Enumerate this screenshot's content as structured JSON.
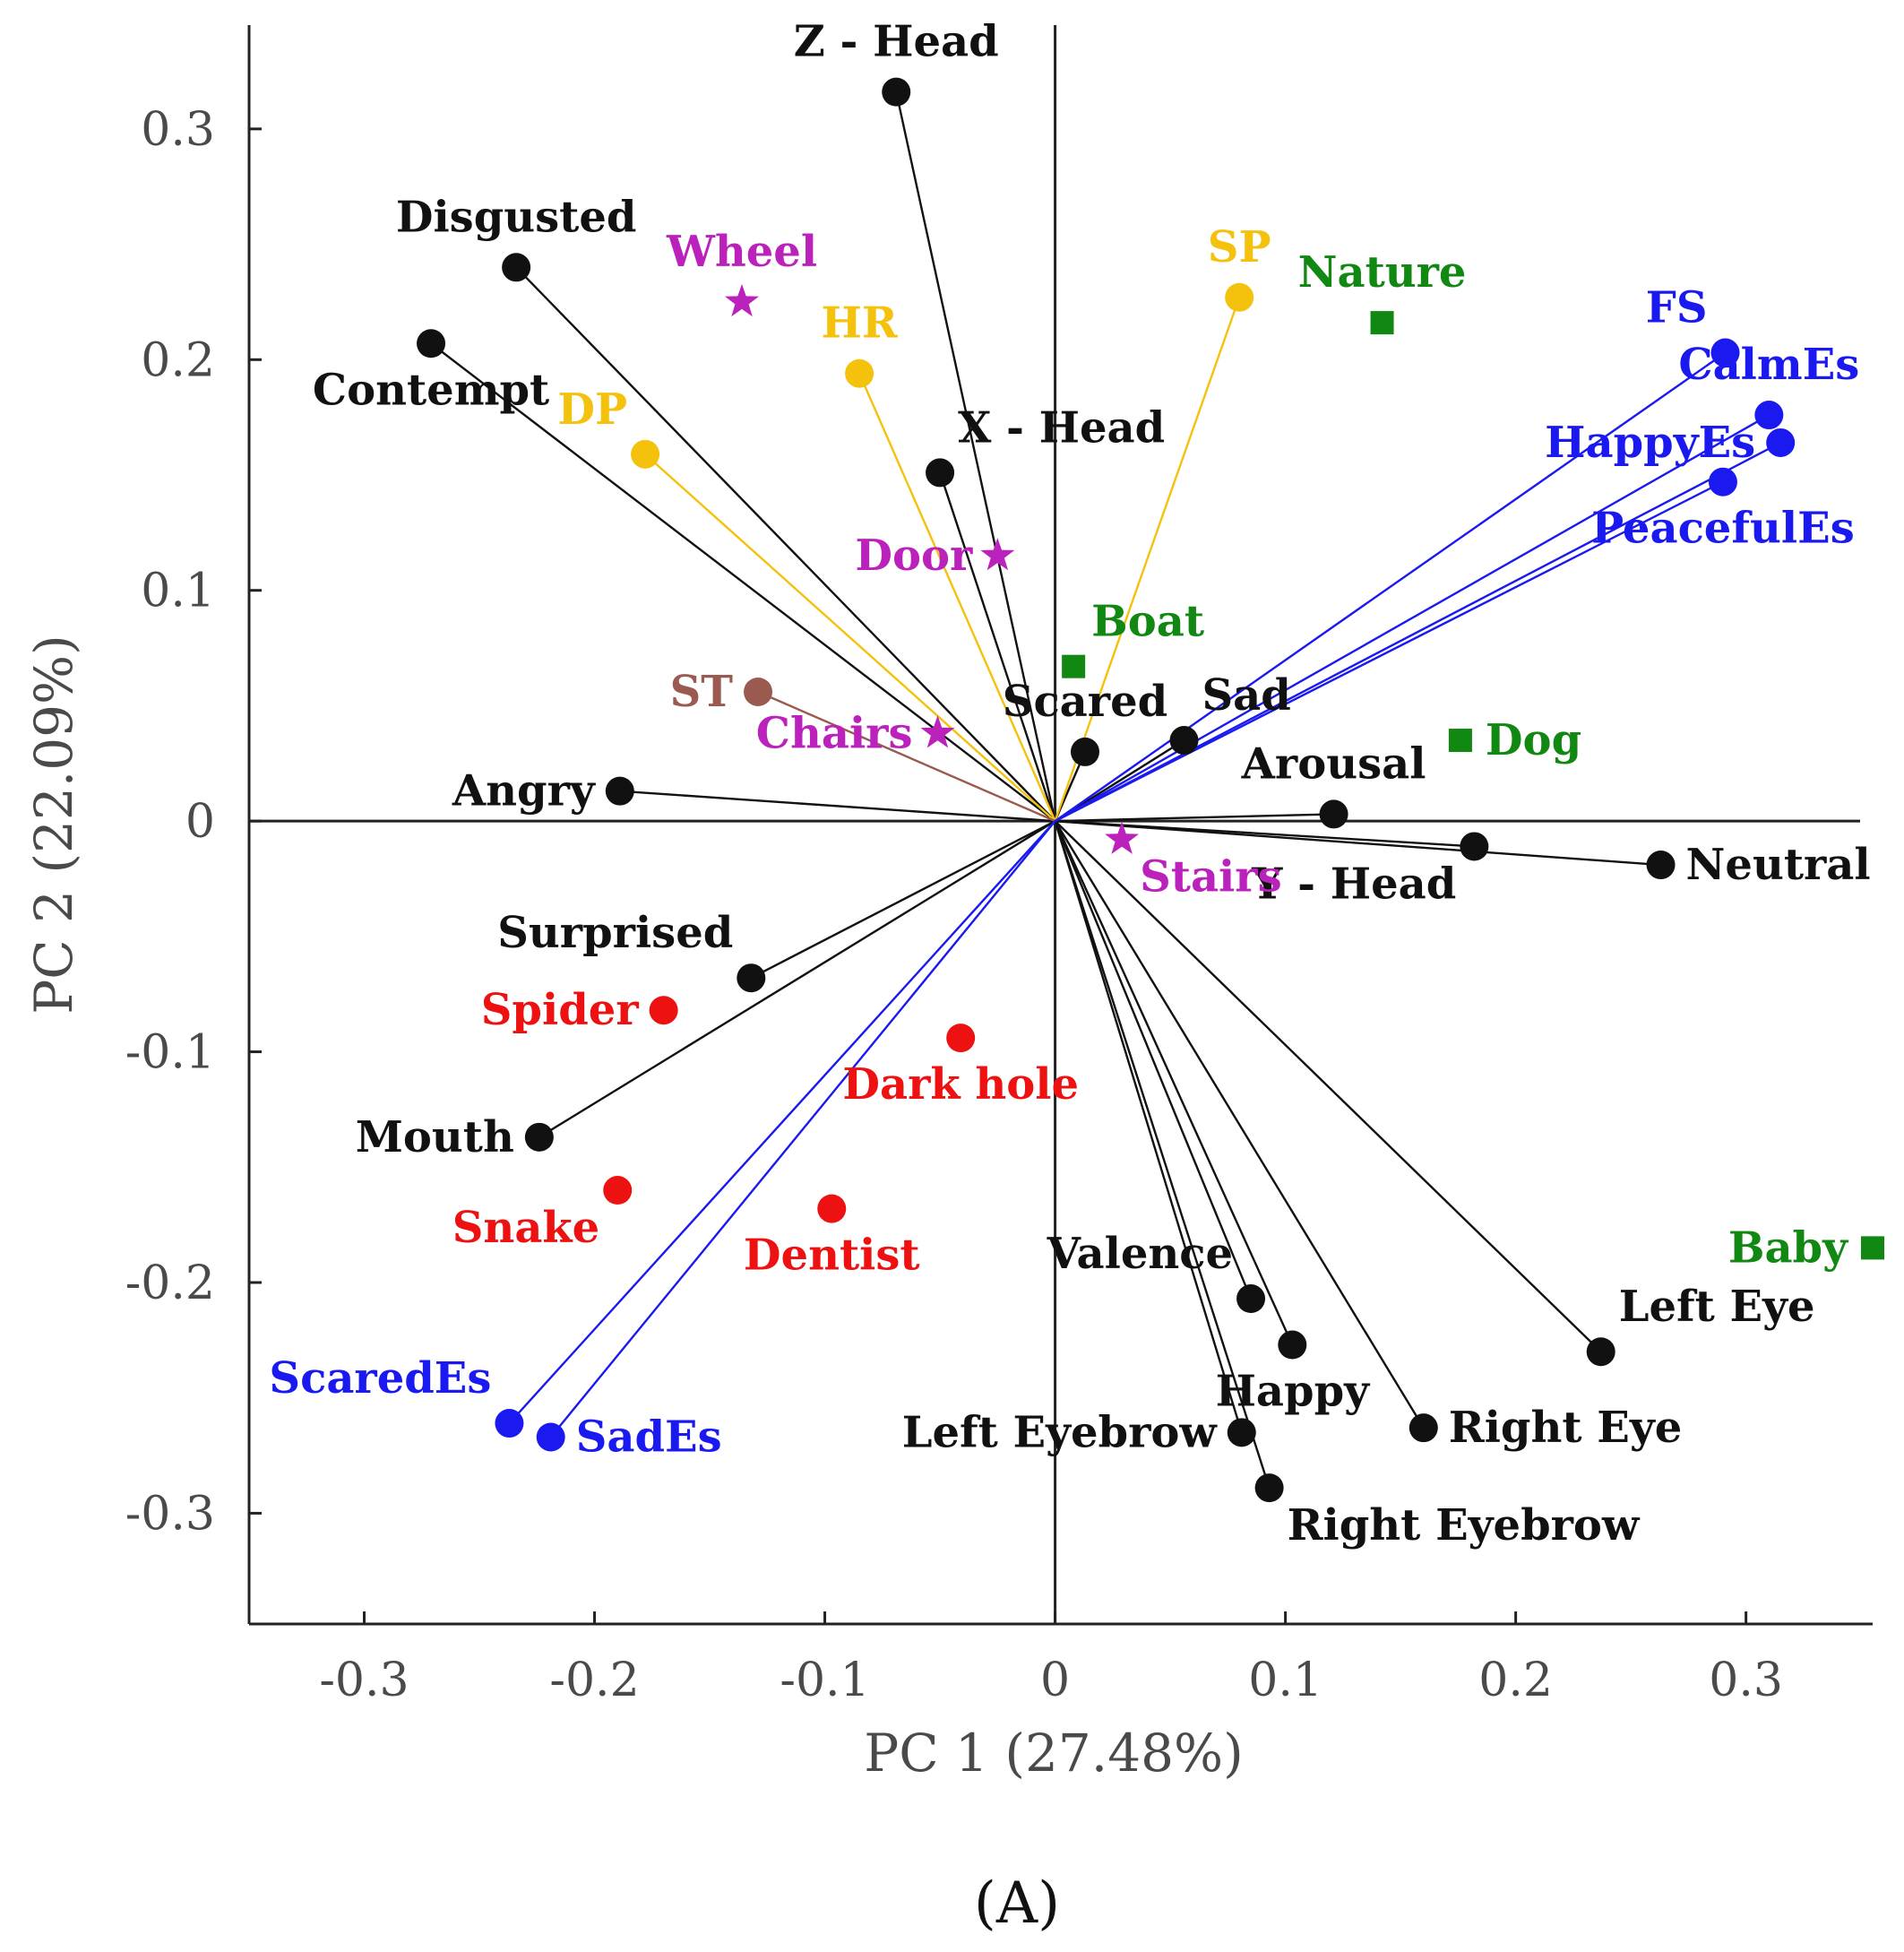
{
  "colors": {
    "black": "#111111",
    "gold": "#f4c20d",
    "blue": "#1a1af0",
    "red": "#ee1111",
    "green": "#118811",
    "magenta": "#bb22bb",
    "brown": "#9a5a50"
  },
  "chart_data": {
    "type": "scatter",
    "subtype": "pca-biplot",
    "xlabel": "PC 1 (27.48%)",
    "ylabel": "PC 2 (22.09%)",
    "xlim": [
      -0.35,
      0.355
    ],
    "ylim": [
      -0.348,
      0.345
    ],
    "xticks": [
      {
        "v": -0.3,
        "label": "-0.3"
      },
      {
        "v": -0.2,
        "label": "-0.2"
      },
      {
        "v": -0.1,
        "label": "-0.1"
      },
      {
        "v": 0,
        "label": "0"
      },
      {
        "v": 0.1,
        "label": "0.1"
      },
      {
        "v": 0.2,
        "label": "0.2"
      },
      {
        "v": 0.3,
        "label": "0.3"
      }
    ],
    "yticks": [
      {
        "v": 0.3,
        "label": "0.3"
      },
      {
        "v": 0.2,
        "label": "0.2"
      },
      {
        "v": 0.1,
        "label": "0.1"
      },
      {
        "v": 0,
        "label": "0"
      },
      {
        "v": -0.1,
        "label": "-0.1"
      },
      {
        "v": -0.2,
        "label": "-0.2"
      },
      {
        "v": -0.3,
        "label": "-0.3"
      }
    ],
    "caption": "(A)",
    "loadings": [
      {
        "name": "Z - Head",
        "x": -0.069,
        "y": 0.316,
        "color": "black",
        "labelPos": "above"
      },
      {
        "name": "Disgusted",
        "x": -0.234,
        "y": 0.24,
        "color": "black",
        "labelPos": "above"
      },
      {
        "name": "Contempt",
        "x": -0.271,
        "y": 0.207,
        "color": "black",
        "labelPos": "below"
      },
      {
        "name": "X - Head",
        "x": -0.05,
        "y": 0.151,
        "color": "black",
        "labelPos": "above-right"
      },
      {
        "name": "Scared",
        "x": 0.013,
        "y": 0.03,
        "color": "black",
        "labelPos": "above"
      },
      {
        "name": "Sad",
        "x": 0.056,
        "y": 0.035,
        "color": "black",
        "labelPos": "above-right"
      },
      {
        "name": "Arousal",
        "x": 0.121,
        "y": 0.003,
        "color": "black",
        "labelPos": "above"
      },
      {
        "name": "Y - Head",
        "x": 0.182,
        "y": -0.011,
        "color": "black",
        "labelPos": "below-left"
      },
      {
        "name": "Neutral",
        "x": 0.263,
        "y": -0.019,
        "color": "black",
        "labelPos": "right"
      },
      {
        "name": "Angry",
        "x": -0.189,
        "y": 0.013,
        "color": "black",
        "labelPos": "left"
      },
      {
        "name": "Surprised",
        "x": -0.132,
        "y": -0.068,
        "color": "black",
        "labelPos": "above-left"
      },
      {
        "name": "Mouth",
        "x": -0.224,
        "y": -0.137,
        "color": "black",
        "labelPos": "left"
      },
      {
        "name": "Valence",
        "x": 0.085,
        "y": -0.207,
        "color": "black",
        "labelPos": "above-left"
      },
      {
        "name": "Happy",
        "x": 0.103,
        "y": -0.227,
        "color": "black",
        "labelPos": "below"
      },
      {
        "name": "Left Eyebrow",
        "x": 0.081,
        "y": -0.265,
        "color": "black",
        "labelPos": "left"
      },
      {
        "name": "Right Eyebrow",
        "x": 0.093,
        "y": -0.289,
        "color": "black",
        "labelPos": "below-right"
      },
      {
        "name": "Right Eye",
        "x": 0.16,
        "y": -0.263,
        "color": "black",
        "labelPos": "right"
      },
      {
        "name": "Left Eye",
        "x": 0.237,
        "y": -0.23,
        "color": "black",
        "labelPos": "above-right"
      },
      {
        "name": "DP",
        "x": -0.178,
        "y": 0.159,
        "color": "gold",
        "labelPos": "above-left"
      },
      {
        "name": "HR",
        "x": -0.085,
        "y": 0.194,
        "color": "gold",
        "labelPos": "above"
      },
      {
        "name": "SP",
        "x": 0.08,
        "y": 0.227,
        "color": "gold",
        "labelPos": "above"
      },
      {
        "name": "ST",
        "x": -0.129,
        "y": 0.056,
        "color": "brown",
        "labelPos": "left"
      },
      {
        "name": "FS",
        "x": 0.291,
        "y": 0.203,
        "color": "blue",
        "labelPos": "above-left"
      },
      {
        "name": "CalmEs",
        "x": 0.31,
        "y": 0.176,
        "color": "blue",
        "labelPos": "above"
      },
      {
        "name": "HappyEs",
        "x": 0.315,
        "y": 0.164,
        "color": "blue",
        "labelPos": "left"
      },
      {
        "name": "PeacefulEs",
        "x": 0.29,
        "y": 0.147,
        "color": "blue",
        "labelPos": "below"
      },
      {
        "name": "ScaredEs",
        "x": -0.237,
        "y": -0.261,
        "color": "blue",
        "labelPos": "above-left"
      },
      {
        "name": "SadEs",
        "x": -0.219,
        "y": -0.267,
        "color": "blue",
        "labelPos": "right"
      }
    ],
    "scores": [
      {
        "name": "Wheel",
        "x": -0.136,
        "y": 0.225,
        "color": "magenta",
        "marker": "star",
        "labelPos": "above"
      },
      {
        "name": "Door",
        "x": -0.025,
        "y": 0.115,
        "color": "magenta",
        "marker": "star",
        "labelPos": "left"
      },
      {
        "name": "Chairs",
        "x": -0.051,
        "y": 0.038,
        "color": "magenta",
        "marker": "star",
        "labelPos": "left"
      },
      {
        "name": "Stairs",
        "x": 0.029,
        "y": -0.008,
        "color": "magenta",
        "marker": "star",
        "labelPos": "below-right"
      },
      {
        "name": "Nature",
        "x": 0.142,
        "y": 0.216,
        "color": "green",
        "marker": "square",
        "labelPos": "above"
      },
      {
        "name": "Boat",
        "x": 0.008,
        "y": 0.067,
        "color": "green",
        "marker": "square",
        "labelPos": "above-right"
      },
      {
        "name": "Dog",
        "x": 0.176,
        "y": 0.035,
        "color": "green",
        "marker": "square",
        "labelPos": "right"
      },
      {
        "name": "Baby",
        "x": 0.355,
        "y": -0.185,
        "color": "green",
        "marker": "square",
        "labelPos": "left"
      },
      {
        "name": "Spider",
        "x": -0.17,
        "y": -0.082,
        "color": "red",
        "marker": "circle",
        "labelPos": "left"
      },
      {
        "name": "Dark hole",
        "x": -0.041,
        "y": -0.094,
        "color": "red",
        "marker": "circle",
        "labelPos": "below"
      },
      {
        "name": "Snake",
        "x": -0.19,
        "y": -0.16,
        "color": "red",
        "marker": "circle",
        "labelPos": "below-left"
      },
      {
        "name": "Dentist",
        "x": -0.097,
        "y": -0.168,
        "color": "red",
        "marker": "circle",
        "labelPos": "below"
      }
    ]
  }
}
